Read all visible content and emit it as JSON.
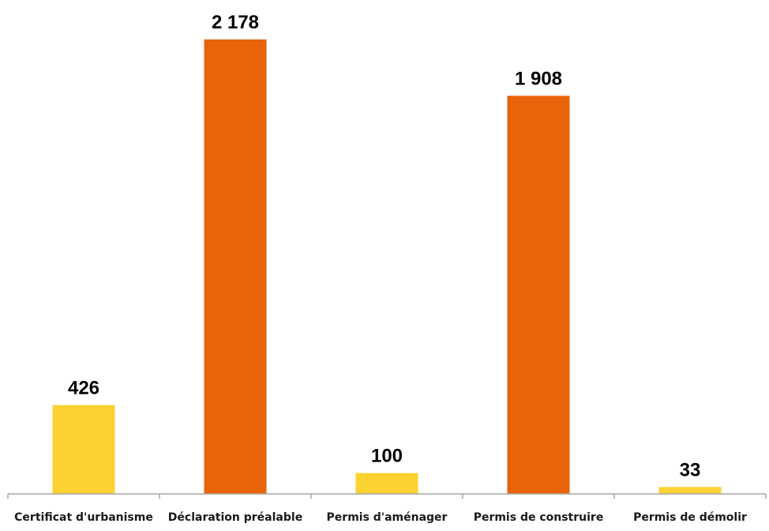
{
  "chart_data": {
    "type": "bar",
    "categories": [
      "Certificat d'urbanisme",
      "Déclaration préalable",
      "Permis d'aménager",
      "Permis de construire",
      "Permis de démolir"
    ],
    "values": [
      426,
      2178,
      100,
      1908,
      33
    ],
    "value_labels": [
      "426",
      "2 178",
      "100",
      "1 908",
      "33"
    ],
    "bar_colors": [
      "#FCD232",
      "#E8630A",
      "#FCD232",
      "#E8630A",
      "#FCD232"
    ],
    "axis_color": "#a6a6a6",
    "title": "",
    "xlabel": "",
    "ylabel": "",
    "ylim": [
      0,
      2178
    ],
    "grid": false,
    "legend": "none"
  }
}
